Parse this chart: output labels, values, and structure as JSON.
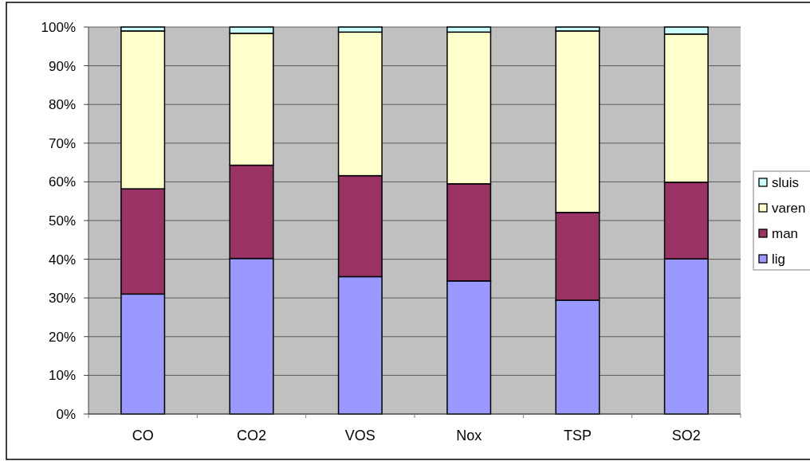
{
  "chart_data": {
    "type": "bar",
    "stacked": true,
    "categories": [
      "CO",
      "CO2",
      "VOS",
      "Nox",
      "TSP",
      "SO2"
    ],
    "series": [
      {
        "name": "lig",
        "color": "#9999ff",
        "values": [
          31.0,
          40.2,
          35.5,
          34.4,
          29.4,
          40.1
        ]
      },
      {
        "name": "man",
        "color": "#993366",
        "values": [
          27.2,
          24.1,
          26.1,
          25.1,
          22.7,
          19.8
        ]
      },
      {
        "name": "varen",
        "color": "#ffffcc",
        "values": [
          40.8,
          34.1,
          37.1,
          39.2,
          46.9,
          38.3
        ]
      },
      {
        "name": "sluis",
        "color": "#ccffff",
        "values": [
          1.0,
          1.6,
          1.3,
          1.3,
          1.0,
          1.8
        ]
      }
    ],
    "ylim": [
      0,
      100
    ],
    "yticks": [
      {
        "value": 0,
        "label": "0%"
      },
      {
        "value": 10,
        "label": "10%"
      },
      {
        "value": 20,
        "label": "20%"
      },
      {
        "value": 30,
        "label": "30%"
      },
      {
        "value": 40,
        "label": "40%"
      },
      {
        "value": 50,
        "label": "50%"
      },
      {
        "value": 60,
        "label": "60%"
      },
      {
        "value": 70,
        "label": "70%"
      },
      {
        "value": 80,
        "label": "80%"
      },
      {
        "value": 90,
        "label": "90%"
      },
      {
        "value": 100,
        "label": "100%"
      }
    ],
    "grid": "y",
    "legend": "right"
  }
}
